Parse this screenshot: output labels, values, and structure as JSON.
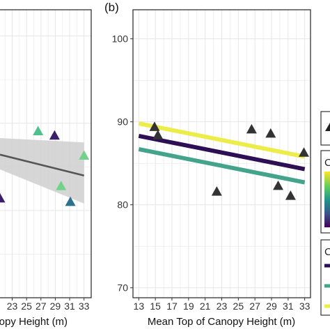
{
  "chart_data": [
    {
      "type": "scatter",
      "panel_label": "",
      "xlabel": "anopy Height (m)",
      "x_ticks": [
        23,
        25,
        27,
        29,
        31,
        33
      ],
      "xlim": [
        21.3,
        34.0
      ],
      "y_ticks": [],
      "ylim": [
        70,
        103
      ],
      "grid": true,
      "series": [
        {
          "marker": "triangle",
          "points": [
            {
              "x": 21.3,
              "y": 81.4,
              "color": "#3b1f6b"
            },
            {
              "x": 26.6,
              "y": 89.1,
              "color": "#52c08c"
            },
            {
              "x": 28.9,
              "y": 88.6,
              "color": "#3b1f6b"
            },
            {
              "x": 29.8,
              "y": 82.8,
              "color": "#73d28a"
            },
            {
              "x": 31.1,
              "y": 81.0,
              "color": "#2c728e"
            },
            {
              "x": 33.0,
              "y": 86.3,
              "color": "#73d28a"
            }
          ]
        },
        {
          "type": "line",
          "x": [
            21.3,
            33.0
          ],
          "y": [
            86.4,
            84.0
          ],
          "color": "#555555",
          "ci_lower": [
            84.7,
            80.8
          ],
          "ci_upper": [
            88.3,
            87.8
          ],
          "ci_color": "#cfcfcf"
        }
      ]
    },
    {
      "type": "scatter",
      "panel_label": "(b)",
      "xlabel": "Mean Top of Canopy Height (m)",
      "x_ticks": [
        13,
        15,
        17,
        19,
        21,
        23,
        25,
        27,
        29,
        31,
        33
      ],
      "xlim": [
        12.3,
        33.7
      ],
      "y_ticks": [
        70,
        80,
        90,
        100
      ],
      "ylim": [
        68.8,
        103.5
      ],
      "grid": true,
      "series": [
        {
          "marker": "triangle",
          "color": "#333333",
          "points": [
            {
              "x": 14.9,
              "y": 89.4
            },
            {
              "x": 15.3,
              "y": 88.4
            },
            {
              "x": 22.4,
              "y": 81.6
            },
            {
              "x": 26.6,
              "y": 89.1
            },
            {
              "x": 28.9,
              "y": 88.6
            },
            {
              "x": 29.8,
              "y": 82.3
            },
            {
              "x": 31.3,
              "y": 81.1
            },
            {
              "x": 32.9,
              "y": 86.3
            }
          ]
        },
        {
          "type": "line",
          "color": "#ecec4a",
          "x": [
            13,
            33
          ],
          "y": [
            89.8,
            85.8
          ]
        },
        {
          "type": "line",
          "color": "#2e0f54",
          "x": [
            13,
            33
          ],
          "y": [
            88.3,
            84.3
          ]
        },
        {
          "type": "line",
          "color": "#43a48b",
          "x": [
            13,
            33
          ],
          "y": [
            86.7,
            82.7
          ]
        }
      ]
    }
  ],
  "legend": {
    "legend_1_title": "",
    "legend_2_title": "C",
    "legend_3_title": "C",
    "gradient_colors": [
      "#fde725",
      "#5ec962",
      "#21918c",
      "#3b528b",
      "#440154"
    ],
    "line_key_colors": [
      "#2e0f54",
      "#43a48b",
      "#ecec4a"
    ]
  }
}
